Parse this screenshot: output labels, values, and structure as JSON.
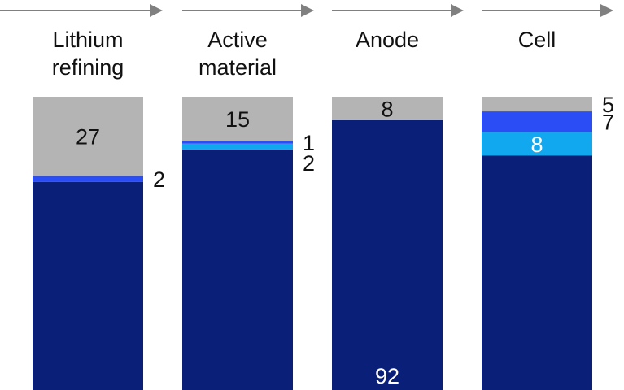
{
  "chart_data": {
    "type": "bar",
    "stacked": true,
    "orientation": "vertical",
    "value_scale": "percent",
    "grid": false,
    "legend": "none",
    "categories": [
      {
        "lines": [
          "Lithium",
          "refining"
        ]
      },
      {
        "lines": [
          "Active",
          "material"
        ]
      },
      {
        "lines": [
          "Anode"
        ]
      },
      {
        "lines": [
          "Cell"
        ]
      }
    ],
    "series": [
      {
        "color": "#0a1f78",
        "values": [
          71,
          82,
          92,
          80
        ],
        "labels": [
          "",
          "",
          "92",
          ""
        ]
      },
      {
        "color": "#12a8f0",
        "values": [
          0,
          2,
          0,
          8
        ],
        "labels": [
          "",
          "2",
          "",
          "8"
        ]
      },
      {
        "color": "#2a4df5",
        "values": [
          2,
          1,
          0,
          7
        ],
        "labels": [
          "2",
          "1",
          "",
          "7"
        ]
      },
      {
        "color": "#b4b4b4",
        "values": [
          27,
          15,
          8,
          5
        ],
        "labels": [
          "27",
          "15",
          "8",
          "5"
        ]
      }
    ],
    "ylim": [
      0,
      100
    ],
    "arrows": {
      "color": "#808080"
    }
  }
}
